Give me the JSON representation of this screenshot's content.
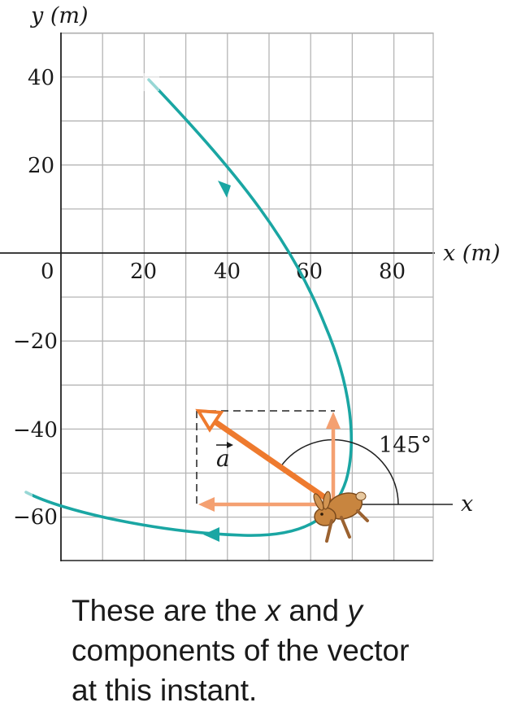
{
  "graph": {
    "x_axis_label": "x (m)",
    "y_axis_label": "y (m)",
    "x_ticks": [
      "0",
      "20",
      "40",
      "60",
      "80"
    ],
    "y_ticks": [
      "40",
      "20",
      "−20",
      "−40",
      "−60"
    ],
    "grid": true
  },
  "vector": {
    "label": "a",
    "angle_label": "145°",
    "reference_axis_label": "x"
  },
  "caption": {
    "lines": [
      "These are the ",
      "x",
      " and ",
      "y",
      "components of the vector",
      "at this instant."
    ]
  },
  "colors": {
    "path": "#1aa6a3",
    "vector": "#ee7a2e",
    "components": "#f4a071",
    "grid": "#b5b5b5"
  },
  "icons": [
    "rabbit-icon",
    "direction-arrow-icon"
  ]
}
